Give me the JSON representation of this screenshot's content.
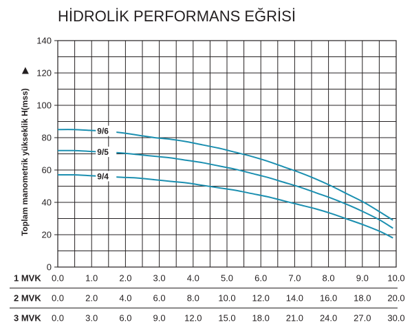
{
  "chart_data": {
    "type": "line",
    "title": "HİDROLİK PERFORMANS EĞRİSİ",
    "ylabel": "Toplam manometrik yükseklik H(mss)",
    "ylabel_arrow": "▶",
    "ylim": [
      0,
      140
    ],
    "y_ticks": [
      "0",
      "20",
      "40",
      "60",
      "80",
      "100",
      "120",
      "140"
    ],
    "grid": true,
    "flow_rows": [
      {
        "label": "1 MVK",
        "ticks": [
          "0.0",
          "1.0",
          "2.0",
          "3.0",
          "4.0",
          "5.0",
          "6.0",
          "7.0",
          "8.0",
          "9.0",
          "10.0"
        ]
      },
      {
        "label": "2 MVK",
        "ticks": [
          "0.0",
          "2.0",
          "4.0",
          "6.0",
          "8.0",
          "10.0",
          "12.0",
          "14.0",
          "16.0",
          "18.0",
          "20.0"
        ]
      },
      {
        "label": "3 MVK",
        "ticks": [
          "0.0",
          "3.0",
          "6.0",
          "9.0",
          "12.0",
          "15.0",
          "18.0",
          "21.0",
          "24.0",
          "27.0",
          "30.0"
        ]
      }
    ],
    "x_axis_basis": "1 MVK",
    "xlim": [
      0,
      10.5
    ],
    "line_color": "#1b8fb0",
    "series": [
      {
        "name": "9/6",
        "x": [
          0,
          0.5,
          1,
          1.5,
          2,
          2.5,
          3,
          3.5,
          4,
          4.5,
          5,
          5.5,
          6,
          6.5,
          7,
          7.5,
          8,
          8.5,
          9,
          9.5,
          10,
          10.4
        ],
        "y": [
          85,
          85,
          84.5,
          84,
          83,
          81.5,
          80,
          79,
          77.5,
          75.5,
          73.5,
          71,
          68.5,
          65.5,
          62,
          58.5,
          54.5,
          50,
          45,
          40,
          34,
          29
        ]
      },
      {
        "name": "9/5",
        "x": [
          0,
          0.5,
          1,
          1.5,
          2,
          2.5,
          3,
          3.5,
          4,
          4.5,
          5,
          5.5,
          6,
          6.5,
          7,
          7.5,
          8,
          8.5,
          9,
          9.5,
          10,
          10.4
        ],
        "y": [
          72,
          72,
          71.5,
          71,
          70.5,
          69.5,
          68.5,
          67.5,
          66,
          64.5,
          62.5,
          60.5,
          58,
          55.5,
          52.5,
          49.5,
          46,
          42.5,
          38.5,
          34,
          29,
          24
        ]
      },
      {
        "name": "9/4",
        "x": [
          0,
          0.5,
          1,
          1.5,
          2,
          2.5,
          3,
          3.5,
          4,
          4.5,
          5,
          5.5,
          6,
          6.5,
          7,
          7.5,
          8,
          8.5,
          9,
          9.5,
          10,
          10.4
        ],
        "y": [
          57,
          57,
          56.5,
          56,
          55.5,
          55,
          54,
          53,
          52,
          50.5,
          49,
          47.5,
          45.5,
          43.5,
          41,
          38.5,
          36,
          33,
          29.5,
          26,
          22,
          18
        ]
      }
    ],
    "series_label_x": [
      1.5,
      1.5,
      1.5
    ]
  }
}
